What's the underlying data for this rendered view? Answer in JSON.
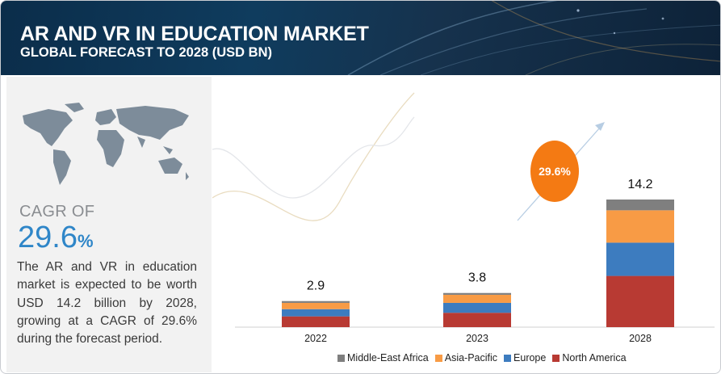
{
  "header": {
    "title": "AR AND VR IN EDUCATION MARKET",
    "subtitle": "GLOBAL FORECAST TO 2028 (USD BN)"
  },
  "summary": {
    "cagr_label": "CAGR OF",
    "cagr_value": "29.6",
    "cagr_unit": "%",
    "description": "The AR and VR in education market is expected to be worth USD 14.2 billion by 2028, growing at a CAGR of 29.6% during the forecast period."
  },
  "colors": {
    "north_america": "#b83a33",
    "europe": "#3d7cbf",
    "asia_pacific": "#f89b45",
    "middle_east_africa": "#7f7f7f",
    "cagr_bubble": "#f47a13",
    "header_bg": "#0f3c5e"
  },
  "chart_data": {
    "type": "bar",
    "stacked": true,
    "categories": [
      "2022",
      "2023",
      "2028"
    ],
    "totals": [
      "2.9",
      "3.8",
      "14.2"
    ],
    "total_values": [
      2.9,
      3.8,
      14.2
    ],
    "series": [
      {
        "name": "North America",
        "color_key": "north_america",
        "values": [
          1.2,
          1.6,
          5.7
        ]
      },
      {
        "name": "Europe",
        "color_key": "europe",
        "values": [
          0.8,
          1.1,
          3.7
        ]
      },
      {
        "name": "Asia-Pacific",
        "color_key": "asia_pacific",
        "values": [
          0.7,
          0.9,
          3.6
        ]
      },
      {
        "name": "Middle-East Africa",
        "color_key": "middle_east_africa",
        "values": [
          0.2,
          0.2,
          1.2
        ]
      }
    ],
    "cagr_annotation": "29.6%",
    "legend_order": [
      "Middle-East Africa",
      "Asia-Pacific",
      "Europe",
      "North America"
    ],
    "legend_position": "bottom",
    "grid": false,
    "ylim": [
      0,
      14.2
    ]
  }
}
